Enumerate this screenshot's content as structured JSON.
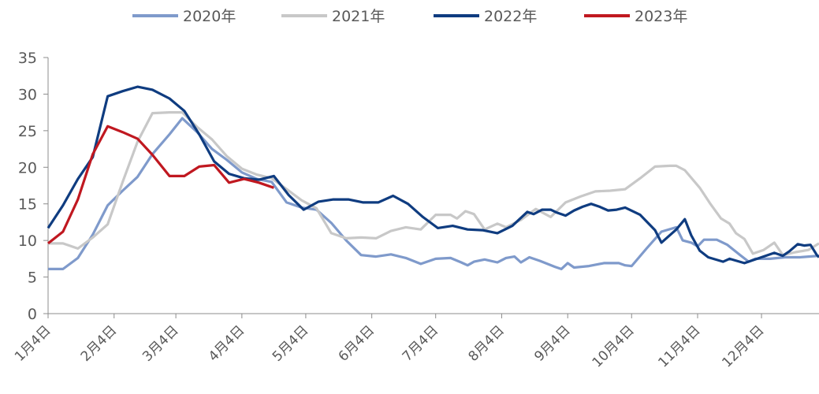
{
  "chart_data": {
    "type": "line",
    "title": "",
    "xlabel": "",
    "ylabel": "",
    "ylim": [
      0,
      35
    ],
    "yticks": [
      "0",
      "5",
      "10",
      "15",
      "20",
      "25",
      "30",
      "35"
    ],
    "xlim": [
      "2020-01-04",
      "2020-12-31"
    ],
    "xticks": [
      {
        "x": "2020-01-04",
        "label": "1月4日"
      },
      {
        "x": "2020-02-04",
        "label": "2月4日"
      },
      {
        "x": "2020-03-04",
        "label": "3月4日"
      },
      {
        "x": "2020-04-04",
        "label": "4月4日"
      },
      {
        "x": "2020-05-04",
        "label": "5月4日"
      },
      {
        "x": "2020-06-04",
        "label": "6月4日"
      },
      {
        "x": "2020-07-04",
        "label": "7月4日"
      },
      {
        "x": "2020-08-04",
        "label": "8月4日"
      },
      {
        "x": "2020-09-04",
        "label": "9月4日"
      },
      {
        "x": "2020-10-04",
        "label": "10月4日"
      },
      {
        "x": "2020-11-04",
        "label": "11月4日"
      },
      {
        "x": "2020-12-04",
        "label": "12月4日"
      }
    ],
    "grid": false,
    "legend_position": "top",
    "series": [
      {
        "name": "2020年",
        "color": "#7f9acb",
        "points": [
          [
            "2020-01-04",
            6.1
          ],
          [
            "2020-01-11",
            6.1
          ],
          [
            "2020-01-18",
            7.6
          ],
          [
            "2020-01-25",
            10.8
          ],
          [
            "2020-02-01",
            14.8
          ],
          [
            "2020-02-08",
            16.8
          ],
          [
            "2020-02-15",
            18.7
          ],
          [
            "2020-02-22",
            21.8
          ],
          [
            "2020-03-01",
            24.5
          ],
          [
            "2020-03-07",
            26.7
          ],
          [
            "2020-03-14",
            24.8
          ],
          [
            "2020-03-21",
            22.5
          ],
          [
            "2020-03-28",
            21.0
          ],
          [
            "2020-04-04",
            19.3
          ],
          [
            "2020-04-11",
            18.4
          ],
          [
            "2020-04-18",
            18.0
          ],
          [
            "2020-04-25",
            15.2
          ],
          [
            "2020-05-02",
            14.5
          ],
          [
            "2020-05-09",
            14.2
          ],
          [
            "2020-05-16",
            12.4
          ],
          [
            "2020-05-23",
            10.0
          ],
          [
            "2020-05-30",
            8.0
          ],
          [
            "2020-06-06",
            7.8
          ],
          [
            "2020-06-13",
            8.1
          ],
          [
            "2020-06-20",
            7.6
          ],
          [
            "2020-06-27",
            6.8
          ],
          [
            "2020-07-04",
            7.5
          ],
          [
            "2020-07-11",
            7.6
          ],
          [
            "2020-07-16",
            7.0
          ],
          [
            "2020-07-19",
            6.6
          ],
          [
            "2020-07-22",
            7.1
          ],
          [
            "2020-07-27",
            7.4
          ],
          [
            "2020-08-02",
            7.0
          ],
          [
            "2020-08-06",
            7.6
          ],
          [
            "2020-08-10",
            7.8
          ],
          [
            "2020-08-13",
            7.0
          ],
          [
            "2020-08-17",
            7.7
          ],
          [
            "2020-08-22",
            7.2
          ],
          [
            "2020-08-29",
            6.4
          ],
          [
            "2020-09-01",
            6.1
          ],
          [
            "2020-09-04",
            6.9
          ],
          [
            "2020-09-07",
            6.3
          ],
          [
            "2020-09-14",
            6.5
          ],
          [
            "2020-09-21",
            6.9
          ],
          [
            "2020-09-28",
            6.9
          ],
          [
            "2020-10-01",
            6.6
          ],
          [
            "2020-10-04",
            6.5
          ],
          [
            "2020-10-11",
            8.9
          ],
          [
            "2020-10-18",
            11.2
          ],
          [
            "2020-10-25",
            11.8
          ],
          [
            "2020-10-28",
            10.0
          ],
          [
            "2020-11-01",
            9.7
          ],
          [
            "2020-11-04",
            9.2
          ],
          [
            "2020-11-07",
            10.1
          ],
          [
            "2020-11-13",
            10.1
          ],
          [
            "2020-11-18",
            9.4
          ],
          [
            "2020-11-24",
            8.0
          ],
          [
            "2020-11-28",
            7.1
          ],
          [
            "2020-12-01",
            7.5
          ],
          [
            "2020-12-08",
            7.5
          ],
          [
            "2020-12-15",
            7.7
          ],
          [
            "2020-12-22",
            7.7
          ],
          [
            "2020-12-31",
            7.9
          ]
        ]
      },
      {
        "name": "2021年",
        "color": "#c8c8c8",
        "points": [
          [
            "2020-01-04",
            9.6
          ],
          [
            "2020-01-11",
            9.6
          ],
          [
            "2020-01-18",
            8.9
          ],
          [
            "2020-01-25",
            10.4
          ],
          [
            "2020-02-01",
            12.2
          ],
          [
            "2020-02-08",
            18.0
          ],
          [
            "2020-02-15",
            23.5
          ],
          [
            "2020-02-22",
            27.4
          ],
          [
            "2020-03-01",
            27.5
          ],
          [
            "2020-03-07",
            27.5
          ],
          [
            "2020-03-14",
            25.5
          ],
          [
            "2020-03-21",
            23.8
          ],
          [
            "2020-03-28",
            21.5
          ],
          [
            "2020-04-04",
            19.8
          ],
          [
            "2020-04-11",
            19.0
          ],
          [
            "2020-04-18",
            18.5
          ],
          [
            "2020-04-25",
            17.0
          ],
          [
            "2020-05-02",
            15.5
          ],
          [
            "2020-05-09",
            14.4
          ],
          [
            "2020-05-16",
            11.0
          ],
          [
            "2020-05-23",
            10.3
          ],
          [
            "2020-05-30",
            10.4
          ],
          [
            "2020-06-06",
            10.3
          ],
          [
            "2020-06-13",
            11.3
          ],
          [
            "2020-06-20",
            11.8
          ],
          [
            "2020-06-27",
            11.5
          ],
          [
            "2020-07-04",
            13.5
          ],
          [
            "2020-07-11",
            13.5
          ],
          [
            "2020-07-14",
            13.0
          ],
          [
            "2020-07-18",
            14.0
          ],
          [
            "2020-07-22",
            13.6
          ],
          [
            "2020-07-27",
            11.5
          ],
          [
            "2020-08-02",
            12.3
          ],
          [
            "2020-08-06",
            11.8
          ],
          [
            "2020-08-13",
            12.8
          ],
          [
            "2020-08-20",
            14.3
          ],
          [
            "2020-08-27",
            13.2
          ],
          [
            "2020-09-03",
            15.2
          ],
          [
            "2020-09-10",
            16.0
          ],
          [
            "2020-09-17",
            16.7
          ],
          [
            "2020-09-24",
            16.8
          ],
          [
            "2020-10-01",
            17.0
          ],
          [
            "2020-10-08",
            18.5
          ],
          [
            "2020-10-15",
            20.1
          ],
          [
            "2020-10-22",
            20.2
          ],
          [
            "2020-10-25",
            20.2
          ],
          [
            "2020-10-29",
            19.6
          ],
          [
            "2020-11-05",
            17.2
          ],
          [
            "2020-11-10",
            15.0
          ],
          [
            "2020-11-15",
            13.0
          ],
          [
            "2020-11-19",
            12.3
          ],
          [
            "2020-11-22",
            11.0
          ],
          [
            "2020-11-26",
            10.2
          ],
          [
            "2020-11-30",
            8.2
          ],
          [
            "2020-12-05",
            8.7
          ],
          [
            "2020-12-10",
            9.7
          ],
          [
            "2020-12-14",
            8.0
          ],
          [
            "2020-12-20",
            8.4
          ],
          [
            "2020-12-26",
            8.7
          ],
          [
            "2020-12-31",
            9.6
          ]
        ]
      },
      {
        "name": "2022年",
        "color": "#0f3c80",
        "points": [
          [
            "2020-01-04",
            11.7
          ],
          [
            "2020-01-11",
            14.8
          ],
          [
            "2020-01-18",
            18.4
          ],
          [
            "2020-01-25",
            21.4
          ],
          [
            "2020-02-01",
            29.7
          ],
          [
            "2020-02-08",
            30.4
          ],
          [
            "2020-02-15",
            31.0
          ],
          [
            "2020-02-22",
            30.6
          ],
          [
            "2020-03-01",
            29.4
          ],
          [
            "2020-03-08",
            27.7
          ],
          [
            "2020-03-15",
            24.5
          ],
          [
            "2020-03-22",
            20.8
          ],
          [
            "2020-03-29",
            19.1
          ],
          [
            "2020-04-05",
            18.5
          ],
          [
            "2020-04-12",
            18.3
          ],
          [
            "2020-04-19",
            18.8
          ],
          [
            "2020-04-26",
            16.2
          ],
          [
            "2020-05-03",
            14.2
          ],
          [
            "2020-05-10",
            15.3
          ],
          [
            "2020-05-17",
            15.6
          ],
          [
            "2020-05-24",
            15.6
          ],
          [
            "2020-05-31",
            15.2
          ],
          [
            "2020-06-07",
            15.2
          ],
          [
            "2020-06-14",
            16.1
          ],
          [
            "2020-06-21",
            15.0
          ],
          [
            "2020-06-28",
            13.2
          ],
          [
            "2020-07-05",
            11.7
          ],
          [
            "2020-07-12",
            12.0
          ],
          [
            "2020-07-19",
            11.5
          ],
          [
            "2020-07-26",
            11.4
          ],
          [
            "2020-08-02",
            11.0
          ],
          [
            "2020-08-09",
            12.0
          ],
          [
            "2020-08-16",
            13.9
          ],
          [
            "2020-08-19",
            13.6
          ],
          [
            "2020-08-23",
            14.2
          ],
          [
            "2020-08-27",
            14.2
          ],
          [
            "2020-08-30",
            13.8
          ],
          [
            "2020-09-03",
            13.4
          ],
          [
            "2020-09-07",
            14.1
          ],
          [
            "2020-09-11",
            14.6
          ],
          [
            "2020-09-15",
            15.0
          ],
          [
            "2020-09-19",
            14.6
          ],
          [
            "2020-09-23",
            14.1
          ],
          [
            "2020-09-27",
            14.2
          ],
          [
            "2020-10-01",
            14.5
          ],
          [
            "2020-10-08",
            13.5
          ],
          [
            "2020-10-15",
            11.4
          ],
          [
            "2020-10-18",
            9.7
          ],
          [
            "2020-10-25",
            11.5
          ],
          [
            "2020-10-29",
            12.9
          ],
          [
            "2020-11-01",
            10.7
          ],
          [
            "2020-11-05",
            8.6
          ],
          [
            "2020-11-09",
            7.7
          ],
          [
            "2020-11-16",
            7.1
          ],
          [
            "2020-11-19",
            7.5
          ],
          [
            "2020-11-26",
            6.9
          ],
          [
            "2020-12-03",
            7.6
          ],
          [
            "2020-12-10",
            8.3
          ],
          [
            "2020-12-14",
            7.9
          ],
          [
            "2020-12-17",
            8.5
          ],
          [
            "2020-12-21",
            9.5
          ],
          [
            "2020-12-24",
            9.3
          ],
          [
            "2020-12-27",
            9.4
          ],
          [
            "2020-12-30",
            8.0
          ],
          [
            "2020-12-31",
            7.7
          ]
        ]
      },
      {
        "name": "2023年",
        "color": "#c01820",
        "points": [
          [
            "2020-01-04",
            9.6
          ],
          [
            "2020-01-11",
            11.2
          ],
          [
            "2020-01-18",
            15.6
          ],
          [
            "2020-01-25",
            21.8
          ],
          [
            "2020-02-01",
            25.6
          ],
          [
            "2020-02-08",
            24.8
          ],
          [
            "2020-02-15",
            23.9
          ],
          [
            "2020-02-22",
            21.7
          ],
          [
            "2020-03-01",
            18.8
          ],
          [
            "2020-03-08",
            18.8
          ],
          [
            "2020-03-15",
            20.1
          ],
          [
            "2020-03-22",
            20.3
          ],
          [
            "2020-03-29",
            17.9
          ],
          [
            "2020-04-05",
            18.4
          ],
          [
            "2020-04-12",
            17.9
          ],
          [
            "2020-04-19",
            17.2
          ]
        ]
      }
    ]
  }
}
